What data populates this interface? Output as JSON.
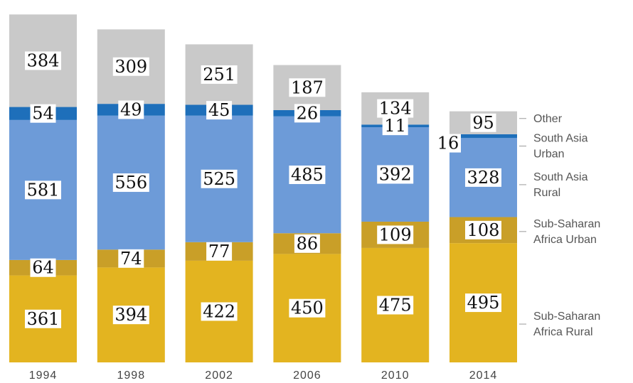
{
  "chart_data": {
    "type": "bar",
    "stacked": true,
    "categories": [
      "1994",
      "1998",
      "2002",
      "2006",
      "2010",
      "2014"
    ],
    "series": [
      {
        "name": "Sub-Saharan Africa Rural",
        "color": "#e3b420",
        "values": [
          361,
          394,
          422,
          450,
          475,
          495
        ]
      },
      {
        "name": "Sub-Saharan Africa Urban",
        "color": "#c99f28",
        "values": [
          64,
          74,
          77,
          86,
          109,
          108
        ]
      },
      {
        "name": "South Asia Rural",
        "color": "#6d9bd8",
        "values": [
          581,
          556,
          525,
          485,
          392,
          328
        ]
      },
      {
        "name": "South Asia Urban",
        "color": "#1e6fba",
        "values": [
          54,
          49,
          45,
          26,
          11,
          16
        ]
      },
      {
        "name": "Other",
        "color": "#c9c9c9",
        "values": [
          384,
          309,
          251,
          187,
          134,
          95
        ]
      }
    ],
    "legend_labels": [
      {
        "series": "Other",
        "lines": [
          "Other"
        ]
      },
      {
        "series": "South Asia Urban",
        "lines": [
          "South Asia",
          "Urban"
        ]
      },
      {
        "series": "South Asia Rural",
        "lines": [
          "South Asia",
          "Rural"
        ]
      },
      {
        "series": "Sub-Saharan Africa Urban",
        "lines": [
          "Sub-Saharan",
          "Africa Urban"
        ]
      },
      {
        "series": "Sub-Saharan Africa Rural",
        "lines": [
          "Sub-Saharan",
          "Africa Rural"
        ]
      }
    ],
    "legend_position": "right",
    "grid": false
  }
}
